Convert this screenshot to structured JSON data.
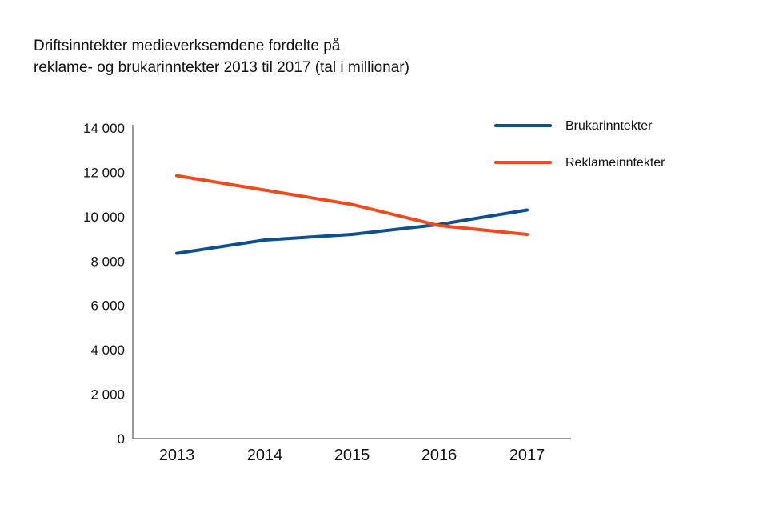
{
  "chart_data": {
    "type": "line",
    "title_line1": "Driftsinntekter medieverksemdene fordelte på",
    "title_line2": "reklame- og brukarinntekter 2013 til 2017 (tal i millionar)",
    "x": [
      "2013",
      "2014",
      "2015",
      "2016",
      "2017"
    ],
    "ylim": [
      0,
      14000
    ],
    "yticks": [
      "0",
      "2 000",
      "4 000",
      "6 000",
      "8 000",
      "10 000",
      "12 000",
      "14 000"
    ],
    "ytick_values": [
      0,
      2000,
      4000,
      6000,
      8000,
      10000,
      12000,
      14000
    ],
    "grid": false,
    "legend_position": "top-right",
    "series": [
      {
        "name": "Brukarinntekter",
        "color": "#0f4f8f",
        "values": [
          8350,
          8950,
          9200,
          9650,
          10300
        ]
      },
      {
        "name": "Reklameinntekter",
        "color": "#ee4a1c",
        "values": [
          11850,
          11200,
          10550,
          9600,
          9200
        ]
      }
    ]
  }
}
